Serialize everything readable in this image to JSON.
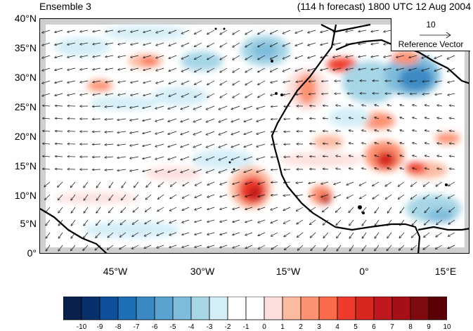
{
  "header": {
    "ensemble_label": "Ensemble 3",
    "forecast_label": "(114 h forecast) 1800 UTC 12 Aug 2004"
  },
  "map": {
    "lat_labels": [
      "40°N",
      "35°N",
      "30°N",
      "25°N",
      "20°N",
      "15°N",
      "10°N",
      "5°N",
      "0°"
    ],
    "lon_labels": [
      "45°W",
      "30°W",
      "15°W",
      "0°",
      "15°E"
    ]
  },
  "reference_vector": {
    "magnitude": "10",
    "label": "Reference Vector"
  },
  "colorbar": {
    "labels": [
      "-10",
      "-9",
      "-8",
      "-7",
      "-6",
      "-5",
      "-4",
      "-3",
      "-2",
      "-1",
      "0",
      "1",
      "2",
      "3",
      "4",
      "5",
      "6",
      "7",
      "8",
      "9",
      "10"
    ],
    "colors": [
      "#08204a",
      "#08306b",
      "#0d4f9a",
      "#1f6fb4",
      "#3c8ac4",
      "#5aa2d0",
      "#7fbcdc",
      "#a6d5e6",
      "#d4eef7",
      "#ffffff",
      "#ffffff",
      "#fde0dd",
      "#fcbba1",
      "#fc9272",
      "#fb6a4a",
      "#ef3b2c",
      "#d7261e",
      "#c0181f",
      "#a50f15",
      "#7f0a0f",
      "#5c0008"
    ]
  }
}
